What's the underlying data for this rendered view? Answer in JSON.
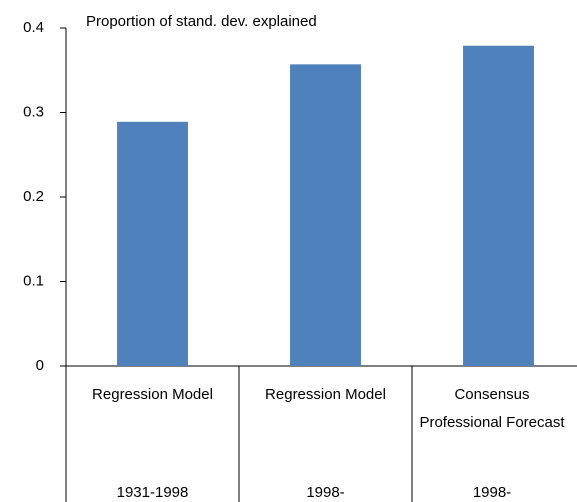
{
  "chart_data": {
    "type": "bar",
    "annotation": "Proportion of stand. dev. explained",
    "categories": [
      "Regression Model",
      "Regression Model",
      "Consensus Professional Forecast"
    ],
    "periods": [
      "1931-1998",
      "1998-",
      "1998-"
    ],
    "values": [
      0.289,
      0.357,
      0.379
    ],
    "color": "#4f81bd",
    "ylim": [
      0,
      0.4
    ],
    "yticks": [
      0,
      0.1,
      0.2,
      0.3,
      0.4
    ],
    "grid": false
  }
}
